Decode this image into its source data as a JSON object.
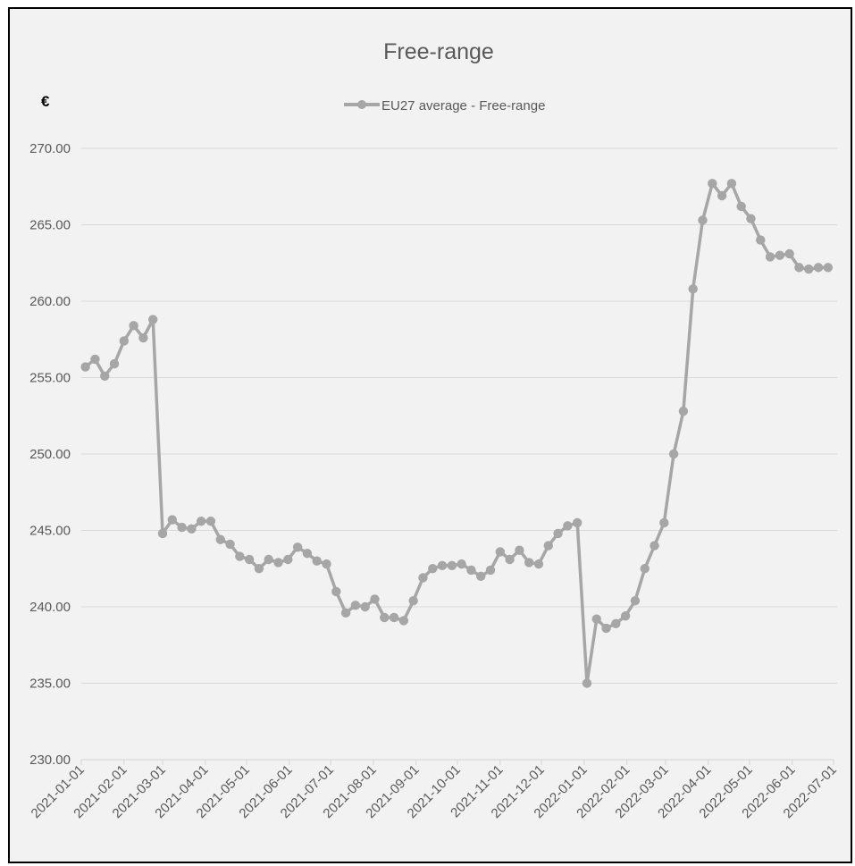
{
  "chart_data": {
    "type": "line",
    "title": "Free-range",
    "unit_label": "€",
    "legend": {
      "position": "top-center",
      "entries": [
        "EU27 average - Free-range"
      ]
    },
    "grid": {
      "horizontal": true,
      "vertical": false
    },
    "colors": {
      "series": "#a6a6a6",
      "grid": "#d9d9d9",
      "text": "#595959",
      "background": "#f2f2f2",
      "frame": "#000000"
    },
    "xaxis": {
      "type": "date",
      "range": [
        "2021-01-01",
        "2022-07-01"
      ],
      "tick_labels": [
        "2021-01-01",
        "2021-02-01",
        "2021-03-01",
        "2021-04-01",
        "2021-05-01",
        "2021-06-01",
        "2021-07-01",
        "2021-08-01",
        "2021-09-01",
        "2021-10-01",
        "2021-11-01",
        "2021-12-01",
        "2022-01-01",
        "2022-02-01",
        "2022-03-01",
        "2022-04-01",
        "2022-05-01",
        "2022-06-01",
        "2022-07-01"
      ]
    },
    "yaxis": {
      "ylim": [
        230,
        270
      ],
      "tick_labels": [
        "230.00",
        "235.00",
        "240.00",
        "245.00",
        "250.00",
        "255.00",
        "260.00",
        "265.00",
        "270.00"
      ]
    },
    "series": [
      {
        "name": "EU27 average - Free-range",
        "x": [
          "2021-01-04",
          "2021-01-11",
          "2021-01-18",
          "2021-01-25",
          "2021-02-01",
          "2021-02-08",
          "2021-02-15",
          "2021-02-22",
          "2021-03-01",
          "2021-03-08",
          "2021-03-15",
          "2021-03-22",
          "2021-03-29",
          "2021-04-05",
          "2021-04-12",
          "2021-04-19",
          "2021-04-26",
          "2021-05-03",
          "2021-05-10",
          "2021-05-17",
          "2021-05-24",
          "2021-05-31",
          "2021-06-07",
          "2021-06-14",
          "2021-06-21",
          "2021-06-28",
          "2021-07-05",
          "2021-07-12",
          "2021-07-19",
          "2021-07-26",
          "2021-08-02",
          "2021-08-09",
          "2021-08-16",
          "2021-08-23",
          "2021-08-30",
          "2021-09-06",
          "2021-09-13",
          "2021-09-20",
          "2021-09-27",
          "2021-10-04",
          "2021-10-11",
          "2021-10-18",
          "2021-10-25",
          "2021-11-01",
          "2021-11-08",
          "2021-11-15",
          "2021-11-22",
          "2021-11-29",
          "2021-12-06",
          "2021-12-13",
          "2021-12-20",
          "2021-12-27",
          "2022-01-03",
          "2022-01-10",
          "2022-01-17",
          "2022-01-24",
          "2022-01-31",
          "2022-02-07",
          "2022-02-14",
          "2022-02-21",
          "2022-02-28",
          "2022-03-07",
          "2022-03-14",
          "2022-03-21",
          "2022-03-28",
          "2022-04-04",
          "2022-04-11",
          "2022-04-18",
          "2022-04-25",
          "2022-05-02",
          "2022-05-09",
          "2022-05-16",
          "2022-05-23",
          "2022-05-30",
          "2022-06-06",
          "2022-06-13",
          "2022-06-20",
          "2022-06-27"
        ],
        "values": [
          255.7,
          256.2,
          255.1,
          255.9,
          257.4,
          258.4,
          257.6,
          258.8,
          244.8,
          245.7,
          245.2,
          245.1,
          245.6,
          245.6,
          244.4,
          244.1,
          243.3,
          243.1,
          242.5,
          243.1,
          242.9,
          243.1,
          243.9,
          243.5,
          243.0,
          242.8,
          241.0,
          239.6,
          240.1,
          240.0,
          240.5,
          239.3,
          239.3,
          239.1,
          240.4,
          241.9,
          242.5,
          242.7,
          242.7,
          242.8,
          242.4,
          242.0,
          242.4,
          243.6,
          243.1,
          243.7,
          242.9,
          242.8,
          244.0,
          244.8,
          245.3,
          245.5,
          235.0,
          239.2,
          238.6,
          238.9,
          239.4,
          240.4,
          242.5,
          244.0,
          245.5,
          250.0,
          252.8,
          260.8,
          265.3,
          267.7,
          266.9,
          267.7,
          266.2,
          265.4,
          264.0,
          262.9,
          263.0,
          263.1,
          262.2,
          262.1,
          262.2,
          262.2
        ]
      }
    ]
  }
}
